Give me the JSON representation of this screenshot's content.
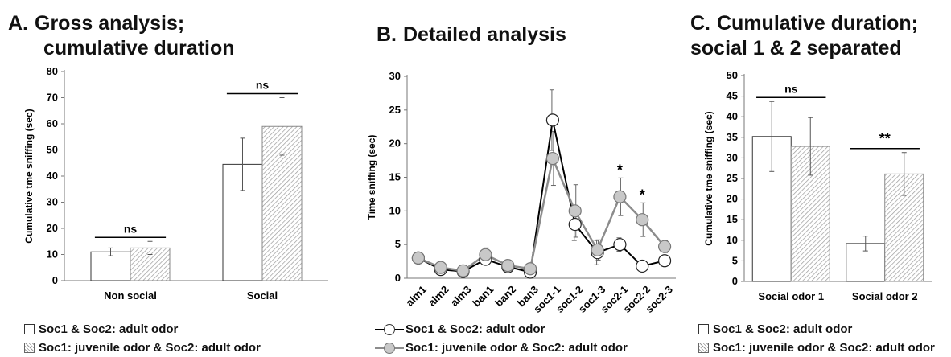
{
  "titles": {
    "a_letter": "A.",
    "a_line1": "Gross analysis;",
    "a_line2": "cumulative duration",
    "b_letter": "B.",
    "b_line1": "Detailed analysis",
    "c_letter": "C.",
    "c_line1": "Cumulative duration;",
    "c_line2": "social 1 & 2 separated"
  },
  "legend": {
    "adult": "Soc1  & Soc2: adult odor",
    "juvenile": "Soc1: juvenile odor & Soc2: adult odor"
  },
  "colors": {
    "adult_line": "#000000",
    "juvenile_line": "#8c8c8c",
    "juvenile_fill": "#c8c8c8",
    "axis": "#777777"
  },
  "chart_data": [
    {
      "type": "bar",
      "panel": "A",
      "ylabel": "Cumulative tme sniffing (sec)",
      "ylim": [
        0,
        80
      ],
      "yticks": [
        "0",
        "10",
        "20",
        "30",
        "40",
        "50",
        "60",
        "70",
        "80"
      ],
      "categories": [
        "Non social",
        "Social"
      ],
      "series": [
        {
          "name": "Soc1  & Soc2: adult odor",
          "values": [
            11,
            44.5
          ],
          "errors": [
            1.5,
            10
          ]
        },
        {
          "name": "Soc1: juvenile odor & Soc2: adult odor",
          "values": [
            12.5,
            59
          ],
          "errors": [
            2.5,
            11
          ]
        }
      ],
      "annotations": [
        "ns",
        "ns"
      ]
    },
    {
      "type": "line",
      "panel": "B",
      "ylabel": "Time sniffing (sec)",
      "ylim": [
        0,
        30
      ],
      "yticks": [
        "0",
        "5",
        "10",
        "15",
        "20",
        "25",
        "30"
      ],
      "categories": [
        "alm1",
        "alm2",
        "alm3",
        "ban1",
        "ban2",
        "ban3",
        "soc1-1",
        "soc1-2",
        "soc1-3",
        "soc2-1",
        "soc2-2",
        "soc2-3"
      ],
      "series": [
        {
          "name": "Soc1  & Soc2: adult odor",
          "values": [
            3,
            1.3,
            1,
            2.8,
            1.7,
            0.9,
            23.5,
            8,
            3.8,
            5,
            1.8,
            2.6
          ],
          "errors": [
            0.3,
            0.3,
            0.3,
            0.6,
            0.4,
            0.4,
            4.5,
            2.4,
            1.8,
            1,
            0.3,
            0.4
          ]
        },
        {
          "name": "Soc1: juvenile odor & Soc2: adult odor",
          "values": [
            3,
            1.6,
            1.1,
            3.5,
            1.9,
            1.4,
            17.8,
            10,
            4.2,
            12.1,
            8.7,
            4.7
          ],
          "errors": [
            0.4,
            0.4,
            0.3,
            1,
            0.5,
            0.5,
            4,
            3.9,
            1.5,
            2.8,
            2.5,
            0.9
          ]
        }
      ],
      "annotations": [
        {
          "category": "soc2-1",
          "text": "*"
        },
        {
          "category": "soc2-2",
          "text": "*"
        }
      ]
    },
    {
      "type": "bar",
      "panel": "C",
      "ylabel": "Cumulative tme sniffing (sec)",
      "ylim": [
        0,
        50
      ],
      "yticks": [
        "0",
        "5",
        "10",
        "15",
        "20",
        "25",
        "30",
        "35",
        "40",
        "45",
        "50"
      ],
      "categories": [
        "Social odor 1",
        "Social odor 2"
      ],
      "series": [
        {
          "name": "Soc1  & Soc2: adult odor",
          "values": [
            35.2,
            9.2
          ],
          "errors": [
            8.5,
            1.8
          ]
        },
        {
          "name": "Soc1: juvenile odor & Soc2: adult odor",
          "values": [
            32.8,
            26.1
          ],
          "errors": [
            7,
            5.2
          ]
        }
      ],
      "annotations": [
        "ns",
        "**"
      ]
    }
  ]
}
